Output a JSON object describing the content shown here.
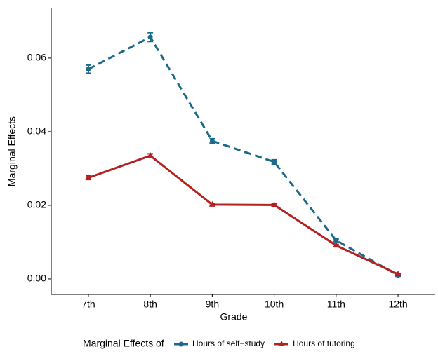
{
  "chart_data": {
    "type": "line",
    "x_label": "Grade",
    "y_label": "Marginal Effects",
    "categories": [
      "7th",
      "8th",
      "9th",
      "10th",
      "11th",
      "12th"
    ],
    "series": [
      {
        "name": "Hours of self−study",
        "color": "#1b6a8a",
        "dash": true,
        "marker": "circle",
        "values": [
          0.057,
          0.0657,
          0.0375,
          0.0318,
          0.0105,
          0.001
        ],
        "errors": [
          0.0011,
          0.0012,
          0.0006,
          0.0006,
          0.0004,
          0.0003
        ]
      },
      {
        "name": "Hours of tutoring",
        "color": "#b22222",
        "dash": false,
        "marker": "triangle",
        "values": [
          0.0275,
          0.0335,
          0.0202,
          0.0201,
          0.0091,
          0.0013
        ],
        "errors": [
          0.0005,
          0.0005,
          0.0003,
          0.0003,
          0.0003,
          0.0002
        ]
      }
    ],
    "ylim": [
      -0.0042,
      0.0735
    ],
    "yticks": [
      {
        "value": 0,
        "label": "0.00"
      },
      {
        "value": 0.02,
        "label": "0.02"
      },
      {
        "value": 0.04,
        "label": "0.04"
      },
      {
        "value": 0.06,
        "label": "0.06"
      }
    ],
    "legend_title": "Marginal Effects of",
    "legend_position": "bottom",
    "grid": false
  }
}
